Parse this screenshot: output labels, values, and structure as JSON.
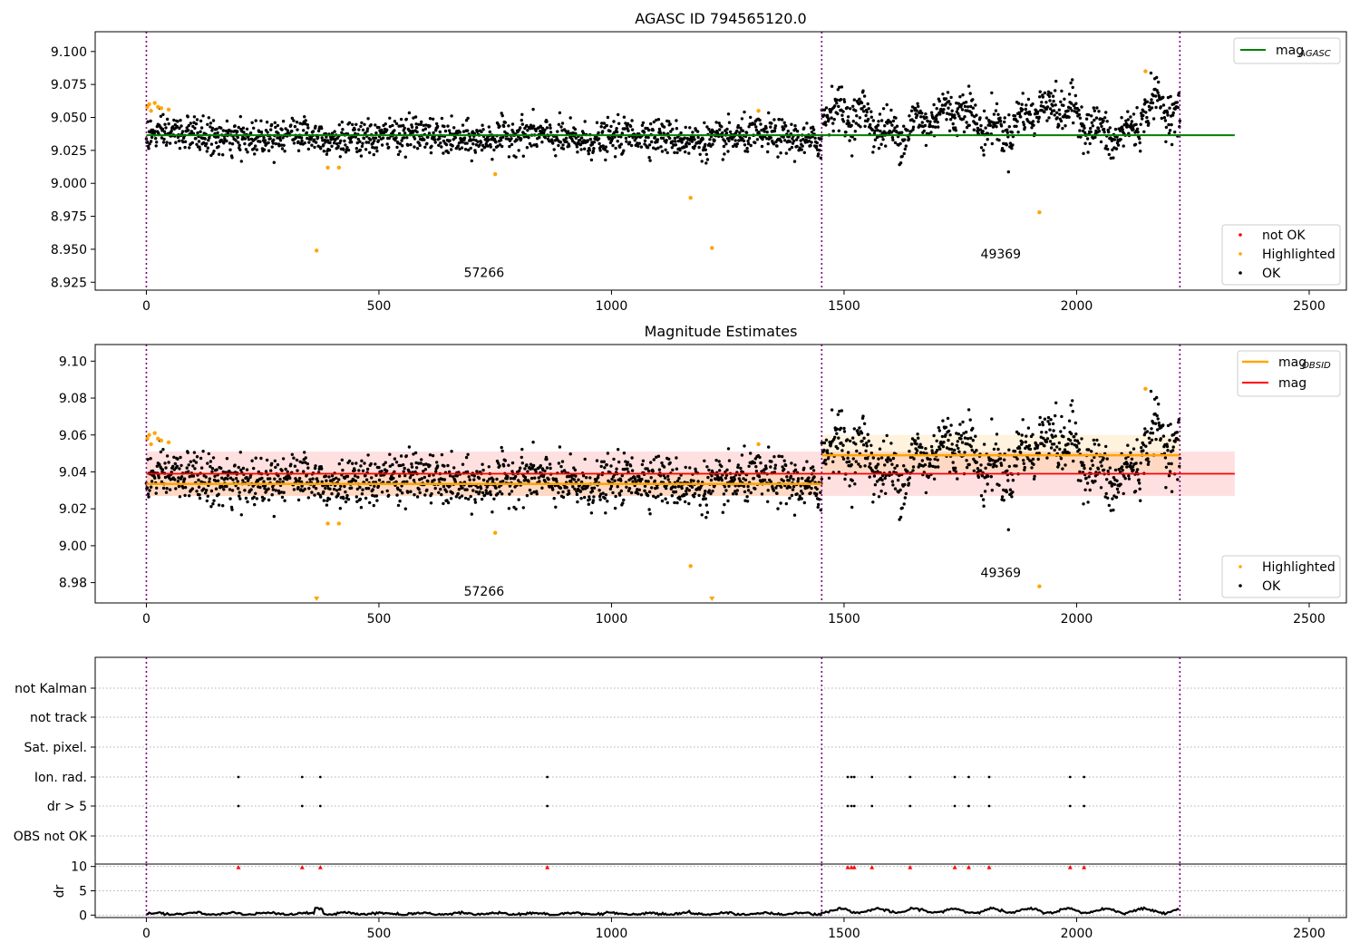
{
  "chart_data": [
    {
      "type": "scatter",
      "title": "AGASC ID 794565120.0",
      "xlabel": "",
      "ylabel": "",
      "xlim": [
        -110,
        2580
      ],
      "ylim": [
        8.919,
        9.115
      ],
      "xticks": [
        "0",
        "500",
        "1000",
        "1500",
        "2000",
        "2500"
      ],
      "yticks": [
        "8.925",
        "8.950",
        "8.975",
        "9.000",
        "9.025",
        "9.050",
        "9.075",
        "9.100"
      ],
      "ytick_values": [
        8.925,
        8.95,
        8.975,
        9.0,
        9.025,
        9.05,
        9.075,
        9.1
      ],
      "grid": false,
      "obs_boundaries": [
        0,
        1452,
        2222
      ],
      "obs_labels": [
        {
          "text": "57266",
          "x": 726,
          "y": 8.929
        },
        {
          "text": "49369",
          "x": 1837,
          "y": 8.943
        }
      ],
      "lines": [
        {
          "name": "mag_AGASC",
          "color": "#008000",
          "x": [
            0,
            2340
          ],
          "y": [
            9.0365,
            9.0365
          ]
        }
      ],
      "ok_points": {
        "series": [
          {
            "x_start": 0,
            "x_end": 1452,
            "center_start": 9.036,
            "center_end": 9.034,
            "noise": 0.0065,
            "count": 1450
          },
          {
            "x_start": 1452,
            "x_end": 2222,
            "wave": [
              [
                1452,
                9.056
              ],
              [
                1550,
                9.05
              ],
              [
                1600,
                9.036
              ],
              [
                1700,
                9.052
              ],
              [
                1750,
                9.058
              ],
              [
                1800,
                9.043
              ],
              [
                1850,
                9.04
              ],
              [
                1900,
                9.054
              ],
              [
                1950,
                9.06
              ],
              [
                2000,
                9.052
              ],
              [
                2060,
                9.036
              ],
              [
                2100,
                9.035
              ],
              [
                2140,
                9.05
              ],
              [
                2180,
                9.065
              ],
              [
                2222,
                9.045
              ]
            ],
            "noise": 0.0078,
            "count": 770
          }
        ]
      },
      "highlighted": {
        "x": [
          2,
          6,
          10,
          18,
          25,
          32,
          48,
          366,
          390,
          414,
          750,
          1170,
          1216,
          1316,
          1920,
          2148
        ],
        "y": [
          9.058,
          9.06,
          9.055,
          9.061,
          9.058,
          9.057,
          9.056,
          8.949,
          9.012,
          9.012,
          9.007,
          8.989,
          8.951,
          9.055,
          8.978,
          9.085
        ]
      },
      "legends": [
        {
          "placement": "upper right",
          "entries": [
            {
              "label": "mag",
              "sub": "AGASC",
              "color": "#008000"
            }
          ]
        },
        {
          "placement": "lower right",
          "entries": [
            {
              "label": "not OK",
              "color": "#ff0000"
            },
            {
              "label": "Highlighted",
              "color": "#ffa500"
            },
            {
              "label": "OK",
              "color": "#000000"
            }
          ]
        }
      ]
    },
    {
      "type": "scatter",
      "title": "Magnitude Estimates",
      "xlabel": "",
      "ylabel": "",
      "xlim": [
        -110,
        2580
      ],
      "ylim": [
        8.969,
        9.109
      ],
      "xticks": [
        "0",
        "500",
        "1000",
        "1500",
        "2000",
        "2500"
      ],
      "yticks": [
        "8.98",
        "9.00",
        "9.02",
        "9.04",
        "9.06",
        "9.08",
        "9.10"
      ],
      "ytick_values": [
        8.98,
        9.0,
        9.02,
        9.04,
        9.06,
        9.08,
        9.1
      ],
      "grid": false,
      "obs_boundaries": [
        0,
        1452,
        2222
      ],
      "obs_labels": [
        {
          "text": "57266",
          "x": 726,
          "y": 8.973
        },
        {
          "text": "49369",
          "x": 1837,
          "y": 8.983
        }
      ],
      "bands": [
        {
          "x": [
            0,
            2340
          ],
          "y": [
            9.027,
            9.051
          ],
          "color": "#ff0000",
          "opacity": 0.12
        },
        {
          "x": [
            0,
            1452
          ],
          "y": [
            9.027,
            9.04
          ],
          "color": "#ffa500",
          "opacity": 0.13
        },
        {
          "x": [
            1452,
            2222
          ],
          "y": [
            9.04,
            9.06
          ],
          "color": "#ffa500",
          "opacity": 0.13
        }
      ],
      "lines": [
        {
          "name": "mag_OBSID",
          "color": "#ffa500",
          "segments": [
            [
              0,
              1452,
              9.0335
            ],
            [
              1452,
              2222,
              9.049
            ]
          ]
        },
        {
          "name": "mag",
          "color": "#ff0000",
          "segments": [
            [
              0,
              2340,
              9.039
            ]
          ]
        }
      ],
      "highlighted": {
        "x": [
          2,
          6,
          10,
          18,
          25,
          32,
          48,
          390,
          414,
          750,
          1170,
          1316,
          1920,
          2148
        ],
        "y": [
          9.058,
          9.06,
          9.055,
          9.061,
          9.058,
          9.057,
          9.056,
          9.012,
          9.012,
          9.007,
          8.989,
          9.055,
          8.978,
          9.085
        ]
      },
      "out_of_range_markers": {
        "x": [
          366,
          1216
        ],
        "direction": "down"
      },
      "legends": [
        {
          "placement": "upper right",
          "entries": [
            {
              "label": "mag",
              "sub": "OBSID",
              "color": "#ffa500"
            },
            {
              "label": "mag",
              "color": "#ff0000"
            }
          ]
        },
        {
          "placement": "lower right",
          "entries": [
            {
              "label": "Highlighted",
              "color": "#ffa500"
            },
            {
              "label": "OK",
              "color": "#000000"
            }
          ]
        }
      ]
    },
    {
      "type": "scatter",
      "title": "",
      "categories": [
        "not Kalman",
        "not track",
        "Sat. pixel.",
        "Ion. rad.",
        "dr > 5",
        "OBS not OK"
      ],
      "xlim": [
        -110,
        2580
      ],
      "grid": true,
      "obs_boundaries": [
        0,
        1452,
        2222
      ],
      "flag_points": {
        "Ion. rad.": [
          198,
          335,
          374,
          862,
          1508,
          1516,
          1522,
          1560,
          1642,
          1738,
          1768,
          1812,
          1986,
          2016
        ],
        "dr > 5": [
          198,
          335,
          374,
          862,
          1508,
          1516,
          1522,
          1560,
          1642,
          1738,
          1768,
          1812,
          1986,
          2016
        ]
      }
    },
    {
      "type": "line",
      "title": "",
      "ylabel": "dr",
      "xlim": [
        -110,
        2580
      ],
      "ylim": [
        -0.5,
        10.5
      ],
      "xticks": [
        "0",
        "500",
        "1000",
        "1500",
        "2000",
        "2500"
      ],
      "yticks": [
        "0",
        "5",
        "10"
      ],
      "ytick_values": [
        0,
        5,
        10
      ],
      "grid": true,
      "obs_boundaries": [
        0,
        1452,
        2222
      ],
      "dr_baseline": {
        "seg1_level": 0.3,
        "seg2_level": 0.9
      },
      "clipped_markers": {
        "x": [
          198,
          335,
          374,
          862,
          1508,
          1516,
          1522,
          1560,
          1642,
          1738,
          1768,
          1812,
          1986,
          2016
        ],
        "y": 10,
        "color": "#ff0000"
      }
    }
  ]
}
